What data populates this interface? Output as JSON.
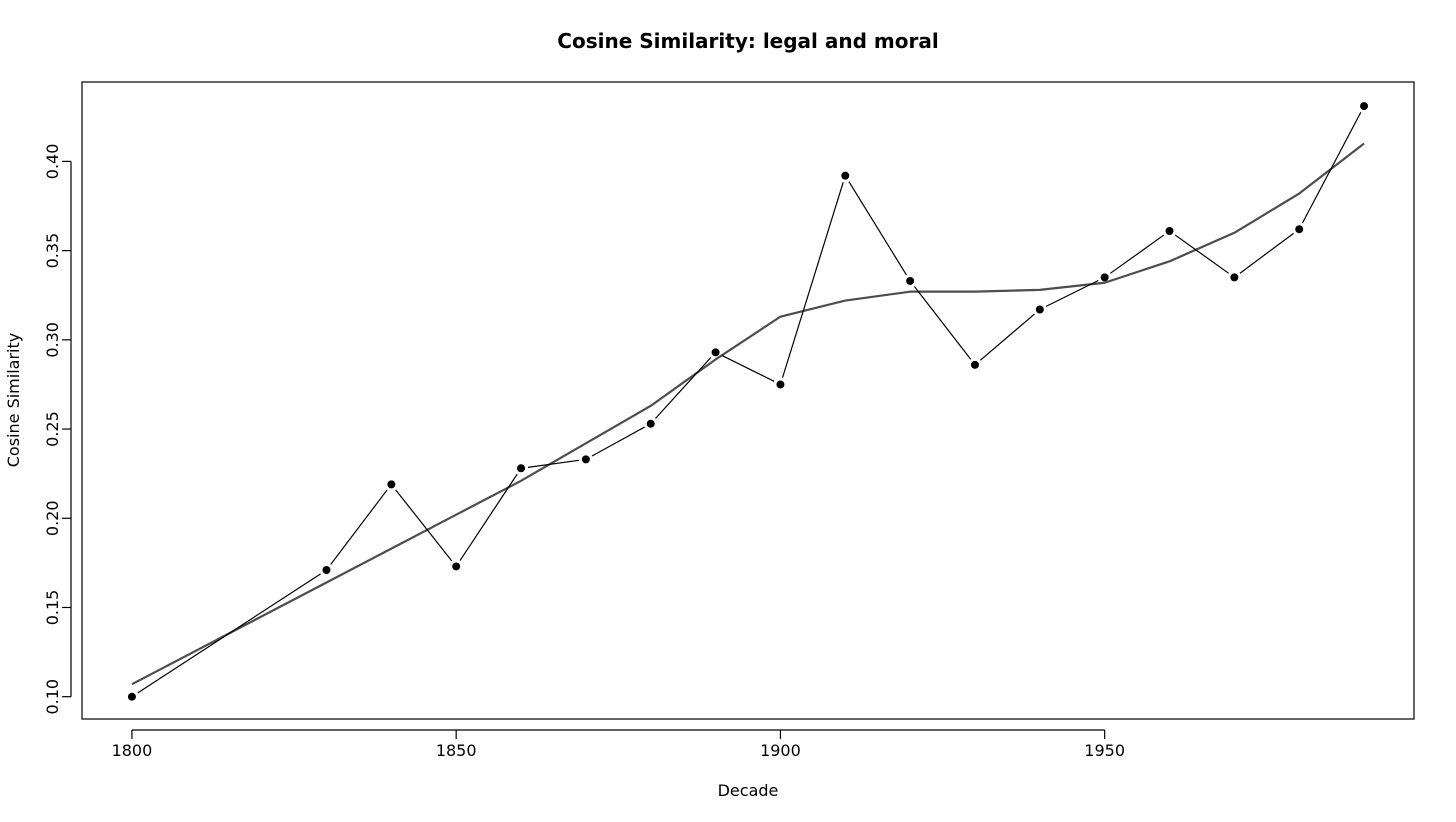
{
  "chart_data": {
    "type": "line",
    "title": "Cosine Similarity: legal and moral",
    "xlabel": "Decade",
    "ylabel": "Cosine Similarity",
    "xlim": [
      1792.3,
      1997.7
    ],
    "ylim": [
      0.0875,
      0.4445
    ],
    "xticks": [
      1800,
      1850,
      1900,
      1950
    ],
    "xtick_labels": [
      "1800",
      "1850",
      "1900",
      "1950"
    ],
    "yticks": [
      0.1,
      0.15,
      0.2,
      0.25,
      0.3,
      0.35,
      0.4
    ],
    "ytick_labels": [
      "0.10",
      "0.15",
      "0.20",
      "0.25",
      "0.30",
      "0.35",
      "0.40"
    ],
    "grid": false,
    "legend": "none",
    "series": [
      {
        "style": "points-and-lines",
        "color": "#000000",
        "x": [
          1800,
          1830,
          1840,
          1850,
          1860,
          1870,
          1880,
          1890,
          1900,
          1910,
          1920,
          1930,
          1940,
          1950,
          1960,
          1970,
          1980,
          1990
        ],
        "y": [
          0.1,
          0.171,
          0.219,
          0.173,
          0.228,
          0.233,
          0.253,
          0.293,
          0.275,
          0.392,
          0.333,
          0.286,
          0.317,
          0.335,
          0.361,
          0.335,
          0.362,
          0.431
        ]
      },
      {
        "style": "smooth-line",
        "color": "#4d4d4d",
        "x": [
          1800,
          1830,
          1840,
          1850,
          1860,
          1870,
          1880,
          1890,
          1900,
          1910,
          1920,
          1930,
          1940,
          1950,
          1960,
          1970,
          1980,
          1990
        ],
        "y": [
          0.107,
          0.164,
          0.183,
          0.202,
          0.221,
          0.242,
          0.263,
          0.289,
          0.313,
          0.322,
          0.327,
          0.327,
          0.328,
          0.332,
          0.344,
          0.36,
          0.382,
          0.41
        ]
      }
    ]
  }
}
